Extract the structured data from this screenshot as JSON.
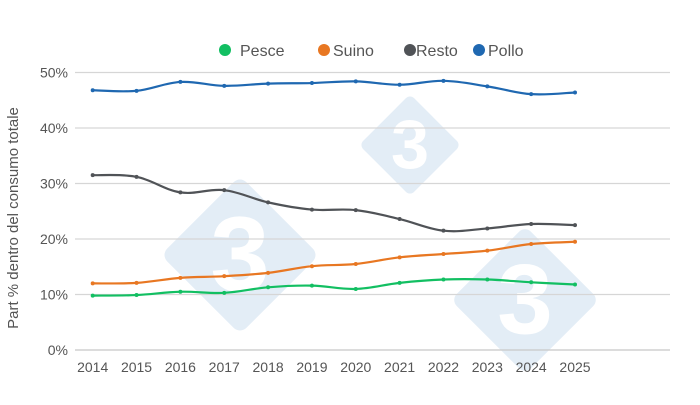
{
  "chart_data": {
    "type": "line",
    "title": "",
    "xlabel": "",
    "ylabel": "Part % dentro del consumo totale",
    "categories": [
      "2014",
      "2015",
      "2016",
      "2017",
      "2018",
      "2019",
      "2020",
      "2021",
      "2022",
      "2023",
      "2024",
      "2025"
    ],
    "ylim": [
      0,
      50
    ],
    "yticks": [
      0,
      10,
      20,
      30,
      40,
      50
    ],
    "ytick_labels": [
      "0%",
      "10%",
      "20%",
      "30%",
      "40%",
      "50%"
    ],
    "grid": true,
    "legend_position": "top",
    "watermark": "3",
    "series": [
      {
        "name": "Pesce",
        "color": "#12bf62",
        "values": [
          9.8,
          9.9,
          10.5,
          10.3,
          11.3,
          11.6,
          11.0,
          12.1,
          12.7,
          12.7,
          12.2,
          11.8
        ]
      },
      {
        "name": "Suino",
        "color": "#e87722",
        "values": [
          12.0,
          12.1,
          13.0,
          13.3,
          13.9,
          15.1,
          15.5,
          16.7,
          17.3,
          17.9,
          19.1,
          19.5
        ]
      },
      {
        "name": "Resto",
        "color": "#505357",
        "values": [
          31.5,
          31.2,
          28.4,
          28.8,
          26.6,
          25.3,
          25.2,
          23.6,
          21.5,
          21.9,
          22.7,
          22.5
        ]
      },
      {
        "name": "Pollo",
        "color": "#1f68b1",
        "values": [
          46.8,
          46.7,
          48.3,
          47.6,
          48.0,
          48.1,
          48.4,
          47.8,
          48.5,
          47.5,
          46.1,
          46.4
        ]
      }
    ]
  }
}
